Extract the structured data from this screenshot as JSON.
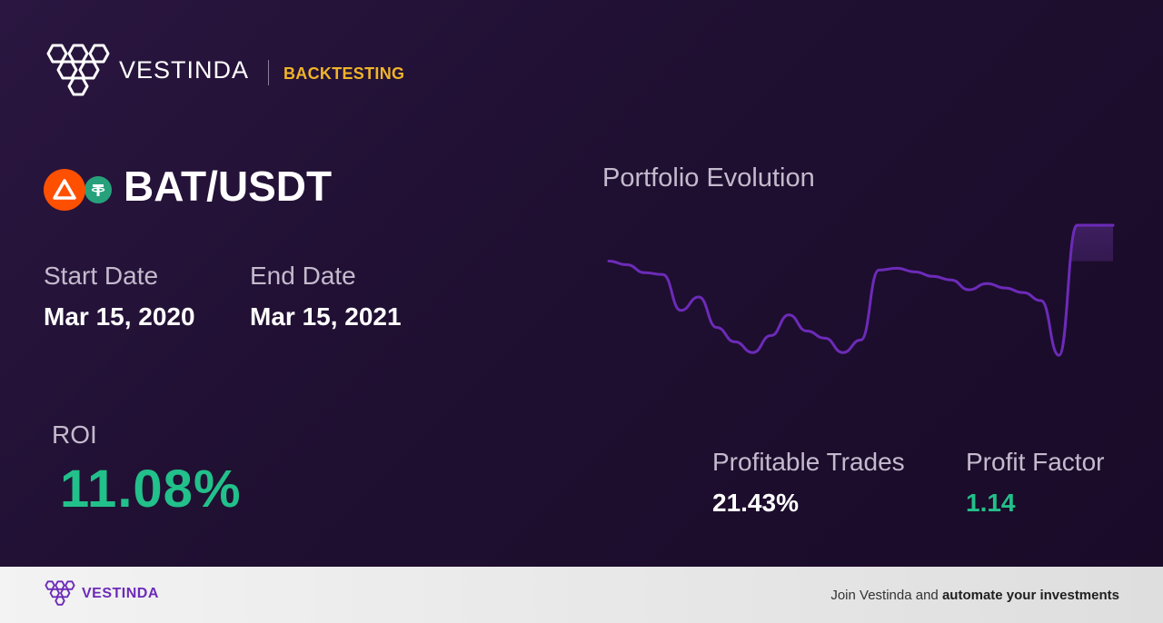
{
  "header": {
    "brand_name": "VESTINDA",
    "tag": "BACKTESTING",
    "logo_icon": "vestinda-hexagon-logo-icon"
  },
  "pair": {
    "symbol": "BAT/USDT",
    "base_icon": "bat-coin-icon",
    "quote_icon": "usdt-coin-icon",
    "colors": {
      "bat": "#ff5000",
      "usdt": "#26a17b"
    }
  },
  "dates": {
    "start_label": "Start Date",
    "start_value": "Mar 15, 2020",
    "end_label": "End Date",
    "end_value": "Mar 15, 2021"
  },
  "roi": {
    "label": "ROI",
    "value": "11.08%"
  },
  "chart": {
    "title": "Portfolio Evolution",
    "line_color": "#6c2bb8"
  },
  "chart_data": {
    "type": "line",
    "title": "Portfolio Evolution",
    "xlabel": "",
    "ylabel": "",
    "grid": false,
    "baseline": 100,
    "ylim": [
      88,
      104
    ],
    "series": [
      {
        "values": [
          100,
          99.6,
          98.7,
          98.5,
          94.5,
          96,
          92.6,
          91,
          89.8,
          91.7,
          94,
          92.2,
          91.4,
          89.8,
          91.2,
          99,
          99.2,
          98.8,
          98.3,
          97.9,
          96.8,
          97.5,
          97,
          96.5,
          95.6,
          89.5,
          104,
          104,
          104
        ]
      }
    ]
  },
  "stats": {
    "profitable_trades_label": "Profitable Trades",
    "profitable_trades_value": "21.43%",
    "profit_factor_label": "Profit Factor",
    "profit_factor_value": "1.14"
  },
  "colors": {
    "accent_gold": "#f0b429",
    "positive_green": "#22c08a",
    "brand_purple": "#6c2bb8"
  },
  "footer": {
    "brand_name": "VESTINDA",
    "cta_prefix": "Join Vestinda and ",
    "cta_bold": "automate your investments"
  }
}
